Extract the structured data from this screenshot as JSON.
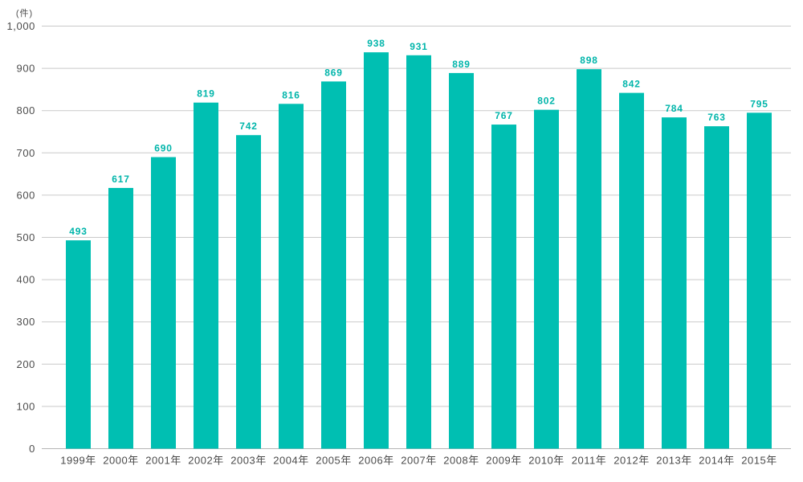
{
  "chart_data": {
    "type": "bar",
    "title": "",
    "unit_label": "(件)",
    "categories": [
      "1999年",
      "2000年",
      "2001年",
      "2002年",
      "2003年",
      "2004年",
      "2005年",
      "2006年",
      "2007年",
      "2008年",
      "2009年",
      "2010年",
      "2011年",
      "2012年",
      "2013年",
      "2014年",
      "2015年"
    ],
    "values": [
      493,
      617,
      690,
      819,
      742,
      816,
      869,
      938,
      931,
      889,
      767,
      802,
      898,
      842,
      784,
      763,
      795
    ],
    "xlabel": "",
    "ylabel": "(件)",
    "ylim": [
      0,
      1000
    ],
    "y_tick_interval": 100,
    "y_tick_labels": [
      "0",
      "100",
      "200",
      "300",
      "400",
      "500",
      "600",
      "700",
      "800",
      "900",
      "1,000"
    ],
    "grid": true,
    "legend_position": "none",
    "bar_color": "#00BFB2",
    "value_label_color": "#00B5AA",
    "axis_text_color": "#4D4D4D",
    "gridline_color": "#C9C9C9",
    "baseline_color": "#B5B5B5",
    "background_color": "#FFFFFF"
  }
}
